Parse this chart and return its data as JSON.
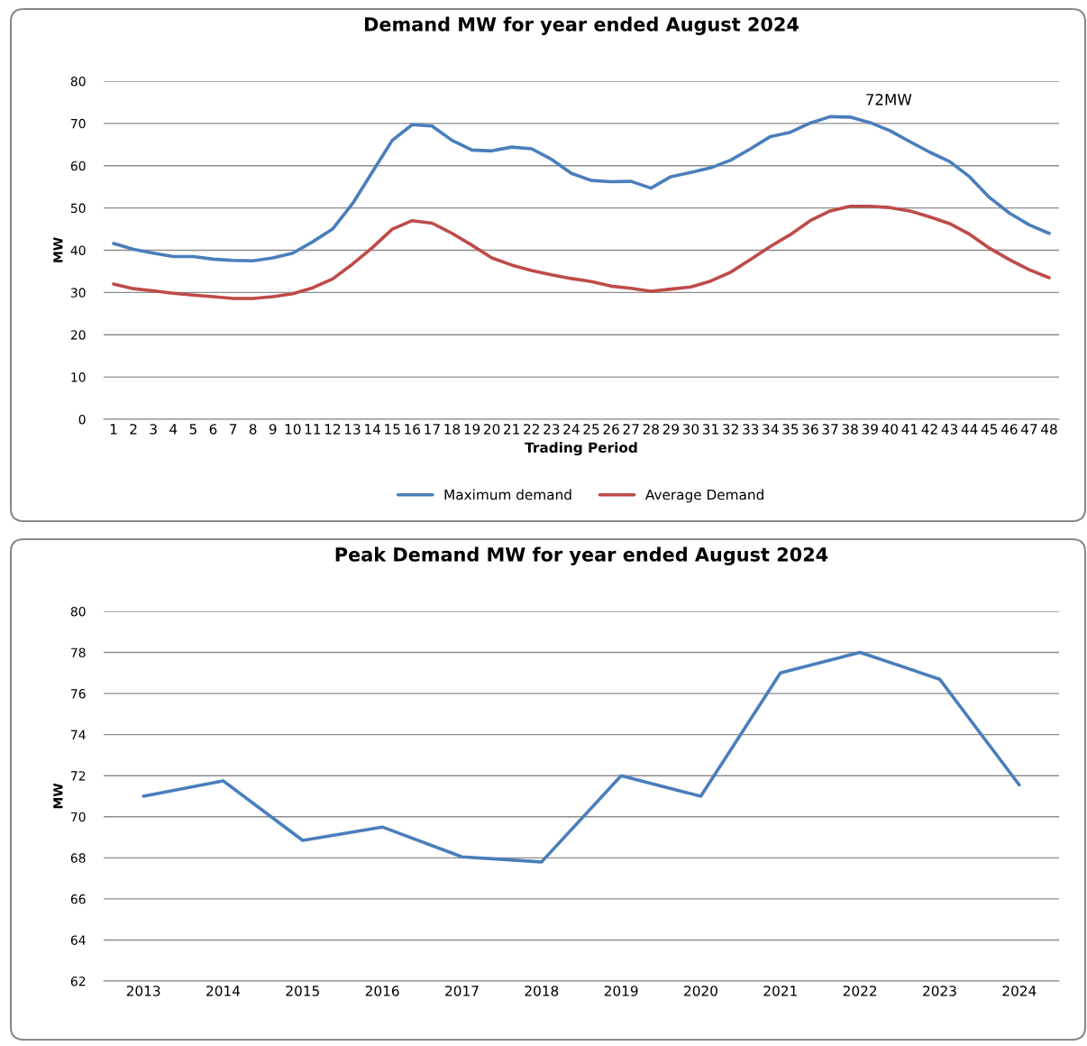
{
  "chart_data": [
    {
      "type": "line",
      "title": "Demand MW for year ended August 2024",
      "xlabel": "Trading Period",
      "ylabel": "MW",
      "categories": [
        "1",
        "2",
        "3",
        "4",
        "5",
        "6",
        "7",
        "8",
        "9",
        "10",
        "11",
        "12",
        "13",
        "14",
        "15",
        "16",
        "17",
        "18",
        "19",
        "20",
        "21",
        "22",
        "23",
        "24",
        "25",
        "26",
        "27",
        "28",
        "29",
        "30",
        "31",
        "32",
        "33",
        "34",
        "35",
        "36",
        "37",
        "38",
        "39",
        "40",
        "41",
        "42",
        "43",
        "44",
        "45",
        "46",
        "47",
        "48"
      ],
      "series": [
        {
          "name": "Maximum demand",
          "color": "#4a7ebb",
          "values": [
            41.6,
            40.2,
            39.3,
            38.5,
            38.5,
            37.9,
            37.6,
            37.5,
            38.2,
            39.3,
            42,
            45,
            51,
            58.5,
            66,
            69.7,
            69.4,
            66,
            63.7,
            63.5,
            64.4,
            64,
            61.5,
            58.2,
            56.5,
            56.2,
            56.3,
            54.7,
            57.4,
            58.4,
            59.5,
            61.3,
            64,
            66.9,
            67.9,
            70.1,
            71.6,
            71.5,
            70.2,
            68.3,
            65.7,
            63.2,
            61,
            57.4,
            52.5,
            48.8,
            46,
            44
          ]
        },
        {
          "name": "Average Demand",
          "color": "#be4b48",
          "values": [
            32,
            30.9,
            30.4,
            29.8,
            29.4,
            29,
            28.6,
            28.6,
            29,
            29.7,
            31.1,
            33.2,
            36.7,
            40.6,
            45,
            47,
            46.4,
            44,
            41.2,
            38.2,
            36.5,
            35.2,
            34.2,
            33.3,
            32.6,
            31.5,
            31,
            30.3,
            30.8,
            31.3,
            32.7,
            34.8,
            37.8,
            40.9,
            43.7,
            47,
            49.3,
            50.4,
            50.4,
            50.1,
            49.3,
            47.9,
            46.3,
            43.8,
            40.5,
            37.8,
            35.4,
            33.5
          ]
        }
      ],
      "ylim": [
        0,
        80
      ],
      "yticks": [
        0,
        10,
        20,
        30,
        40,
        50,
        60,
        70,
        80
      ],
      "grid": "y",
      "legend": "bottom",
      "annotations": [
        {
          "text": "72MW",
          "x": "38",
          "y": 72
        }
      ]
    },
    {
      "type": "line",
      "title": "Peak Demand MW for year ended August 2024",
      "ylabel": "MW",
      "categories": [
        "2013",
        "2014",
        "2015",
        "2016",
        "2017",
        "2018",
        "2019",
        "2020",
        "2021",
        "2022",
        "2023",
        "2024"
      ],
      "series": [
        {
          "color": "#4a7ebb",
          "values": [
            71.0,
            71.75,
            68.85,
            69.5,
            68.05,
            67.8,
            72.0,
            71.0,
            77.0,
            78.0,
            76.7,
            71.55
          ]
        }
      ],
      "ylim": [
        62,
        80
      ],
      "yticks": [
        62,
        64,
        66,
        68,
        70,
        72,
        74,
        76,
        78,
        80
      ],
      "grid": "y"
    }
  ]
}
